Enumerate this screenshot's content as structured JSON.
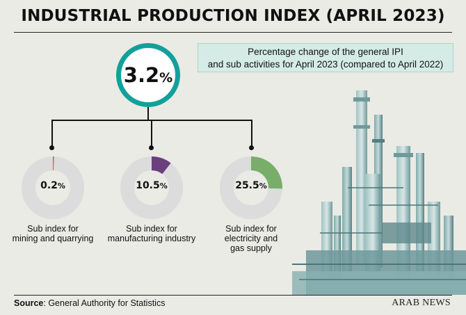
{
  "title": "INDUSTRIAL PRODUCTION INDEX (APRIL 2023)",
  "note": {
    "line1": "Percentage change of the general IPI",
    "line2": "and sub activities for April 2023 (compared to April 2022)"
  },
  "colors": {
    "main_ring": "#13a09b",
    "mining": "#e8553a",
    "manufacturing": "#6a3f7c",
    "electricity": "#79ad6a",
    "track": "#dcdcdc"
  },
  "chart_data": {
    "type": "pie",
    "title": "INDUSTRIAL PRODUCTION INDEX (APRIL 2023)",
    "subtitle": "Percentage change of the general IPI and sub activities for April 2023 (compared to April 2022)",
    "general": {
      "name": "General IPI",
      "value": 3.2,
      "value_text": "3.2",
      "unit": "%"
    },
    "series": [
      {
        "name": "Sub index for mining and quarrying",
        "line1": "Sub index for",
        "line2": "mining and quarrying",
        "line3": "",
        "value": 0.2,
        "value_text": "0.2",
        "unit": "%",
        "color": "#e8553a"
      },
      {
        "name": "Sub index for manufacturing industry",
        "line1": "Sub index for",
        "line2": "manufacturing industry",
        "line3": "",
        "value": 10.5,
        "value_text": "10.5",
        "unit": "%",
        "color": "#6a3f7c"
      },
      {
        "name": "Sub index for electricity and gas supply",
        "line1": "Sub index for",
        "line2": "electricity and",
        "line3": "gas supply",
        "value": 25.5,
        "value_text": "25.5",
        "unit": "%",
        "color": "#79ad6a"
      }
    ]
  },
  "footer": {
    "source_label": "Source",
    "source_text": ": General Authority for Statistics",
    "brand": "ARAB NEWS"
  }
}
